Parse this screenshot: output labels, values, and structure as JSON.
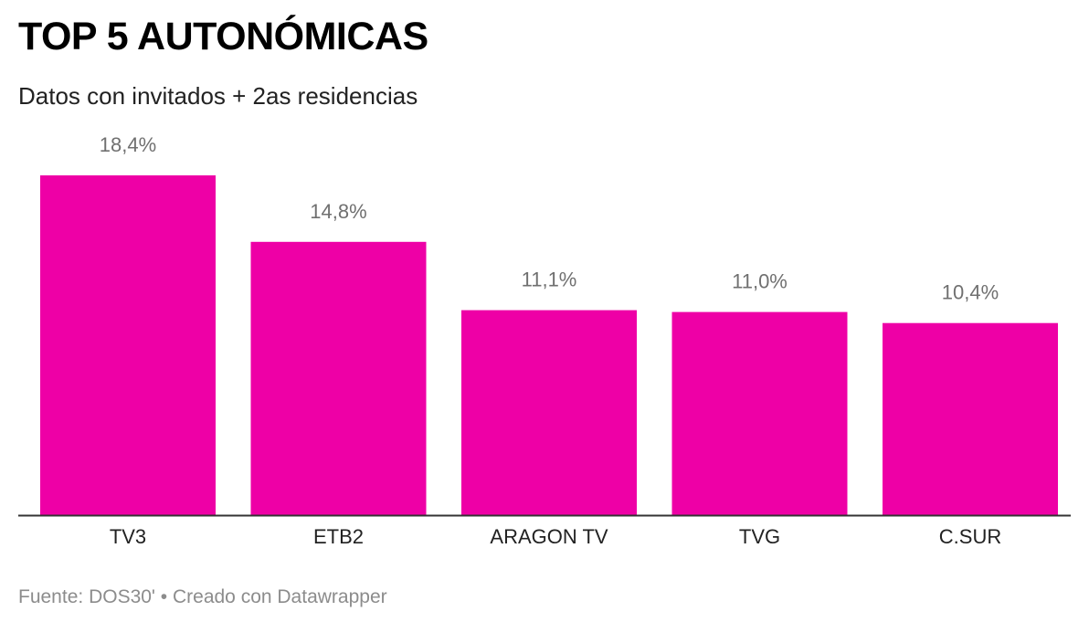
{
  "header": {
    "title": "TOP 5 AUTONÓMICAS",
    "subtitle": "Datos con invitados + 2as residencias"
  },
  "footer": {
    "source_label": "Fuente:",
    "source": "DOS30'",
    "separator": "•",
    "credit": "Creado con Datawrapper"
  },
  "chart_data": {
    "type": "bar",
    "title": "TOP 5 AUTONÓMICAS",
    "subtitle": "Datos con invitados + 2as residencias",
    "categories": [
      "TV3",
      "ETB2",
      "ARAGON TV",
      "TVG",
      "C.SUR"
    ],
    "values": [
      18.4,
      14.8,
      11.1,
      11.0,
      10.4
    ],
    "value_labels": [
      "18,4%",
      "14,8%",
      "11,1%",
      "11,0%",
      "10,4%"
    ],
    "unit": "%",
    "xlabel": "",
    "ylabel": "",
    "ylim": [
      0,
      18.4
    ],
    "grid": false,
    "legend": "none",
    "colors": {
      "bar": "#ee00a6",
      "value_label": "#707070",
      "category_label": "#222222",
      "baseline": "#333333"
    }
  }
}
